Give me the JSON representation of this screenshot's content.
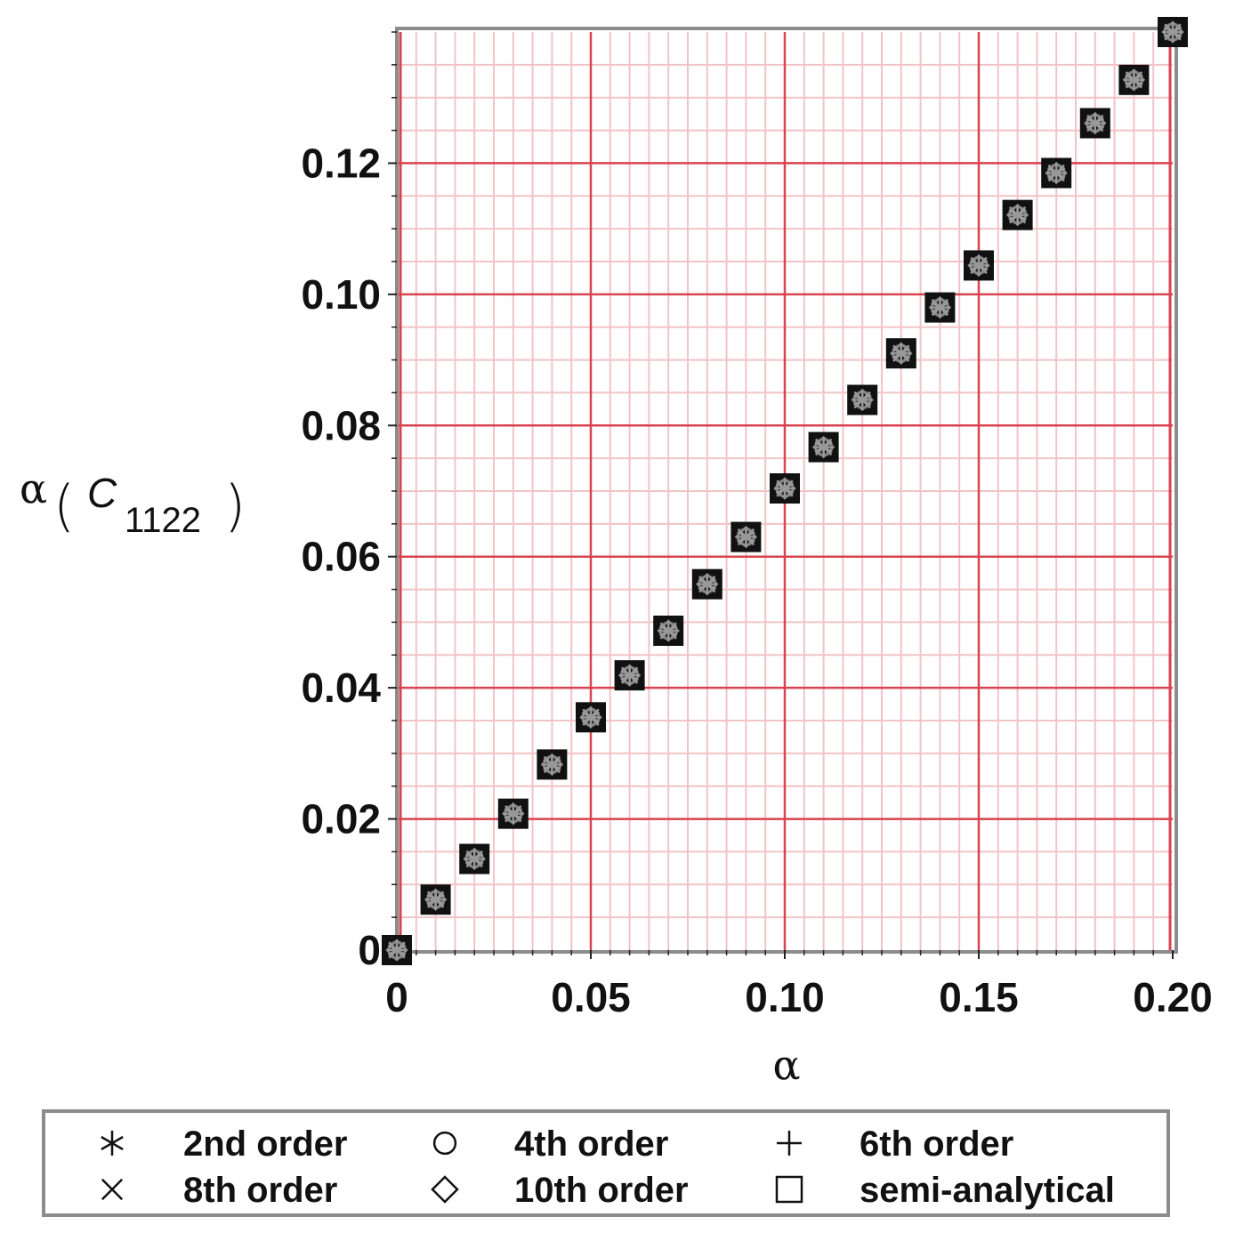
{
  "chart_data": {
    "type": "scatter",
    "xlabel": "α",
    "ylabel": {
      "symbol": "α",
      "open": "(",
      "letter": "C",
      "subscript": "1122",
      "close": ")"
    },
    "xlim": [
      0,
      0.2
    ],
    "ylim": [
      0,
      0.14
    ],
    "grid": true,
    "legend_position": "bottom",
    "x_ticks": [
      "0",
      "0.05",
      "0.10",
      "0.15",
      "0.20"
    ],
    "y_ticks": [
      "0",
      "0.02",
      "0.04",
      "0.06",
      "0.08",
      "0.10",
      "0.12"
    ],
    "x": [
      0,
      0.01,
      0.02,
      0.03,
      0.04,
      0.05,
      0.06,
      0.07,
      0.08,
      0.09,
      0.1,
      0.11,
      0.12,
      0.13,
      0.14,
      0.15,
      0.16,
      0.17,
      0.18,
      0.19,
      0.2
    ],
    "series": [
      {
        "name": "2nd order",
        "marker": "asterisk",
        "values": [
          0,
          0.0077,
          0.0139,
          0.0208,
          0.0283,
          0.0355,
          0.0419,
          0.0487,
          0.0558,
          0.063,
          0.0704,
          0.0767,
          0.0839,
          0.091,
          0.098,
          0.1044,
          0.1121,
          0.1185,
          0.1261,
          0.1327,
          0.14
        ]
      },
      {
        "name": "4th order",
        "marker": "circle",
        "values": [
          0,
          0.0077,
          0.0139,
          0.0208,
          0.0283,
          0.0355,
          0.0419,
          0.0487,
          0.0558,
          0.063,
          0.0704,
          0.0767,
          0.0839,
          0.091,
          0.098,
          0.1044,
          0.1121,
          0.1185,
          0.1261,
          0.1327,
          0.14
        ]
      },
      {
        "name": "6th order",
        "marker": "plus",
        "values": [
          0,
          0.0077,
          0.0139,
          0.0208,
          0.0283,
          0.0355,
          0.0419,
          0.0487,
          0.0558,
          0.063,
          0.0704,
          0.0767,
          0.0839,
          0.091,
          0.098,
          0.1044,
          0.1121,
          0.1185,
          0.1261,
          0.1327,
          0.14
        ]
      },
      {
        "name": "8th order",
        "marker": "cross",
        "values": [
          0,
          0.0077,
          0.0139,
          0.0208,
          0.0283,
          0.0355,
          0.0419,
          0.0487,
          0.0558,
          0.063,
          0.0704,
          0.0767,
          0.0839,
          0.091,
          0.098,
          0.1044,
          0.1121,
          0.1185,
          0.1261,
          0.1327,
          0.14
        ]
      },
      {
        "name": "10th order",
        "marker": "diamond",
        "values": [
          0,
          0.0077,
          0.0139,
          0.0208,
          0.0283,
          0.0355,
          0.0419,
          0.0487,
          0.0558,
          0.063,
          0.0704,
          0.0767,
          0.0839,
          0.091,
          0.098,
          0.1044,
          0.1121,
          0.1185,
          0.1261,
          0.1327,
          0.14
        ]
      },
      {
        "name": "semi-analytical",
        "marker": "square",
        "values": [
          0,
          0.0077,
          0.0139,
          0.0208,
          0.0283,
          0.0355,
          0.0419,
          0.0487,
          0.0558,
          0.063,
          0.0704,
          0.0767,
          0.0839,
          0.091,
          0.098,
          0.1044,
          0.1121,
          0.1185,
          0.1261,
          0.1327,
          0.14
        ]
      }
    ],
    "colors": {
      "major_grid": "#d9434f",
      "minor_grid": "#f2c4c7",
      "frame": "#8c8c8c",
      "marker": "#111111"
    }
  }
}
